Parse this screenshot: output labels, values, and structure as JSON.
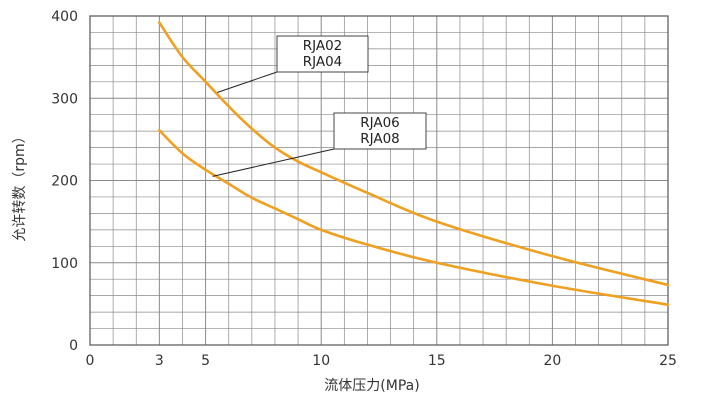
{
  "chart_data": {
    "type": "line",
    "title": "",
    "xlabel": "流体压力(MPa)",
    "ylabel": "允许转数（rpm）",
    "xlim": [
      0,
      25
    ],
    "ylim": [
      0,
      400
    ],
    "xticks": [
      0,
      3,
      5,
      10,
      15,
      20,
      25
    ],
    "yticks": [
      0,
      100,
      200,
      300,
      400
    ],
    "x_minor_ticks": [
      1,
      2,
      4,
      6,
      7,
      8,
      9,
      11,
      12,
      13,
      14,
      16,
      17,
      18,
      19,
      21,
      22,
      23,
      24
    ],
    "y_minor_step": 20,
    "grid": true,
    "legend": "callouts",
    "series": [
      {
        "label_lines": [
          "RJA02",
          "RJA04"
        ],
        "color": "#f0a020",
        "x": [
          3,
          4,
          5,
          6,
          7,
          8,
          9,
          10,
          12,
          15,
          20,
          25
        ],
        "y": [
          392,
          350,
          320,
          290,
          263,
          240,
          223,
          210,
          185,
          150,
          108,
          73
        ]
      },
      {
        "label_lines": [
          "RJA06",
          "RJA08"
        ],
        "color": "#f0a020",
        "x": [
          3,
          4,
          5,
          6,
          7,
          8,
          9,
          10,
          12,
          15,
          20,
          25
        ],
        "y": [
          261,
          233,
          213,
          196,
          179,
          166,
          153,
          140,
          122,
          100,
          72,
          49
        ]
      }
    ]
  }
}
